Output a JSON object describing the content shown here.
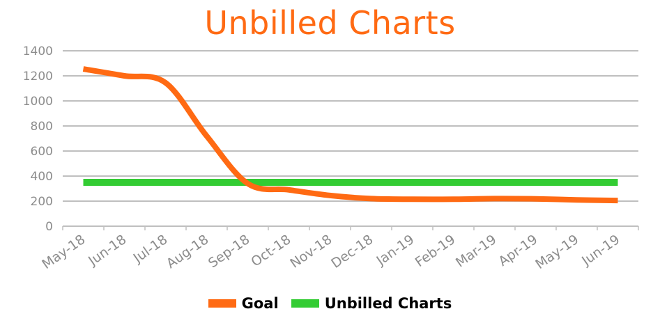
{
  "colors": {
    "goal": "#ff6a13",
    "unbilled": "#33cc33",
    "grid": "#bfbfbf",
    "axis_text": "#8c8c8c"
  },
  "chart_data": {
    "type": "line",
    "title": "Unbilled Charts",
    "xlabel": "",
    "ylabel": "",
    "ylim": [
      0,
      1400
    ],
    "yticks": [
      0,
      200,
      400,
      600,
      800,
      1000,
      1200,
      1400
    ],
    "grid": true,
    "legend_position": "bottom",
    "categories": [
      "May-18",
      "Jun-18",
      "Jul-18",
      "Aug-18",
      "Sep-18",
      "Oct-18",
      "Nov-18",
      "Dec-18",
      "Jan-19",
      "Feb-19",
      "Mar-19",
      "Apr-19",
      "May-19",
      "Jun-19"
    ],
    "series": [
      {
        "name": "Goal",
        "color": "#ff6a13",
        "values": [
          1255,
          1200,
          1145,
          720,
          340,
          290,
          245,
          220,
          215,
          215,
          220,
          218,
          210,
          205
        ]
      },
      {
        "name": "Unbilled Charts",
        "color": "#33cc33",
        "values": [
          350,
          350,
          350,
          350,
          350,
          350,
          350,
          350,
          350,
          350,
          350,
          350,
          350,
          350
        ]
      }
    ]
  }
}
